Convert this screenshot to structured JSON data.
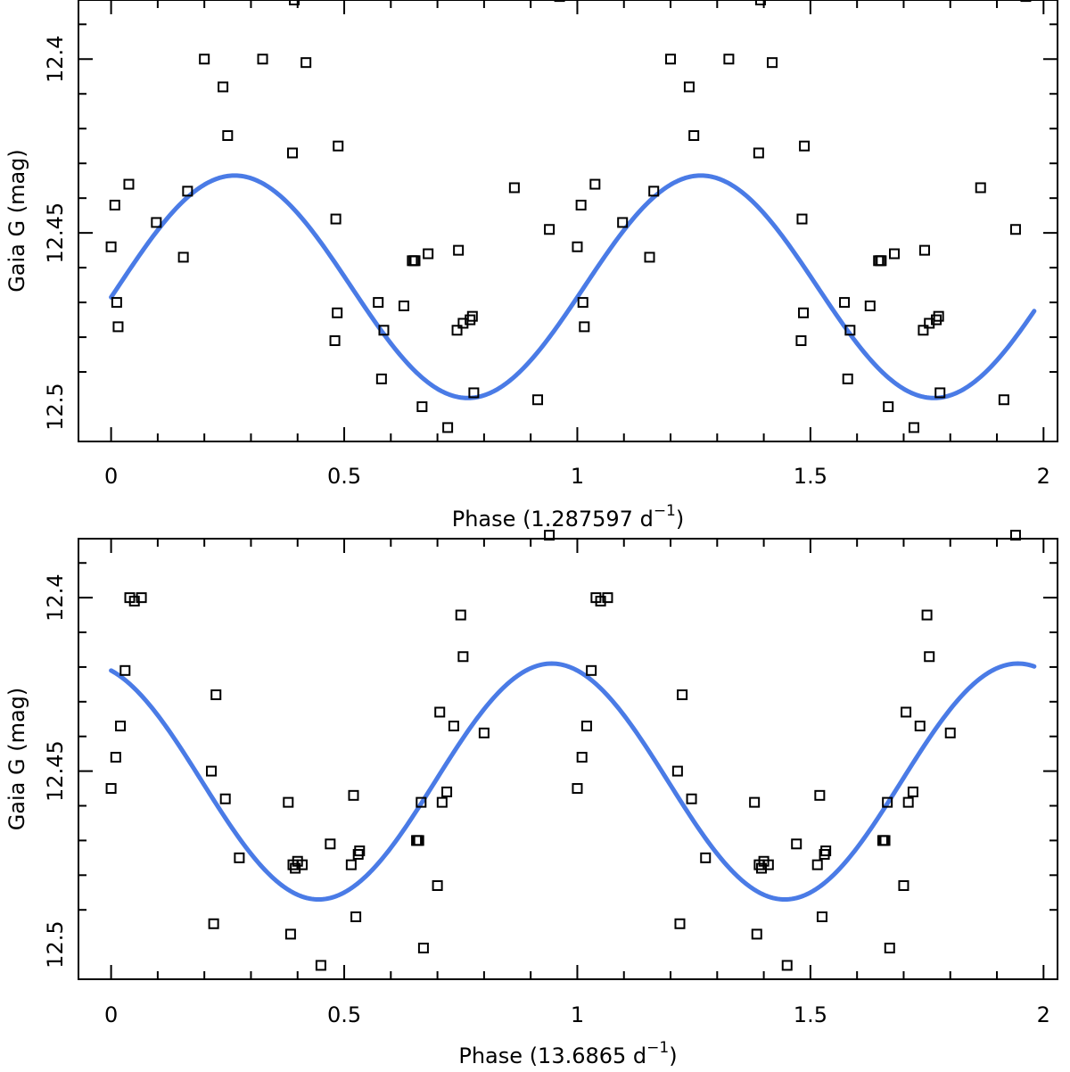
{
  "colors": {
    "fit": "#4a7be6",
    "points": "#000000"
  },
  "chart_data": [
    {
      "type": "scatter",
      "xlabel": "Phase",
      "freq_text": "(1.287597 d",
      "freq_sup": "−1",
      "freq_close": ")",
      "ylabel": "Gaia G (mag)",
      "xlim": [
        -0.07,
        2.03
      ],
      "ylim": [
        12.51,
        12.383
      ],
      "xticks": [
        0,
        0.5,
        1,
        1.5,
        2
      ],
      "xticklabels": [
        "0",
        "0.5",
        "1",
        "1.5",
        "2"
      ],
      "yticks": [
        12.4,
        12.45,
        12.5
      ],
      "yticklabels": [
        "12.4",
        "12.45",
        "12.5"
      ],
      "fit": {
        "mean": 12.4655,
        "amplitude": 0.032,
        "phase_of_max": 0.265
      },
      "phase_base": [
        0.0,
        0.008,
        0.012,
        0.015,
        0.038,
        0.097,
        0.155,
        0.164,
        0.2,
        0.24,
        0.25,
        0.325,
        0.389,
        0.393,
        0.418,
        0.48,
        0.482,
        0.485,
        0.487,
        0.573,
        0.58,
        0.585,
        0.628,
        0.646,
        0.65,
        0.652,
        0.667,
        0.68,
        0.722,
        0.742,
        0.745,
        0.755,
        0.77,
        0.775,
        0.778,
        0.865,
        0.915,
        0.94,
        0.962
      ],
      "mag_base": [
        12.454,
        12.442,
        12.47,
        12.477,
        12.436,
        12.447,
        12.457,
        12.438,
        12.4,
        12.408,
        12.422,
        12.4,
        12.427,
        12.383,
        12.401,
        12.481,
        12.446,
        12.473,
        12.425,
        12.47,
        12.492,
        12.478,
        12.471,
        12.458,
        12.458,
        12.458,
        12.5,
        12.456,
        12.506,
        12.478,
        12.455,
        12.476,
        12.475,
        12.474,
        12.496,
        12.437,
        12.498,
        12.449,
        12.382
      ]
    },
    {
      "type": "scatter",
      "xlabel": "Phase",
      "freq_text": "(13.6865 d",
      "freq_sup": "−1",
      "freq_close": ")",
      "ylabel": "Gaia G (mag)",
      "xlim": [
        -0.07,
        2.03
      ],
      "ylim": [
        12.51,
        12.383
      ],
      "xticks": [
        0,
        0.5,
        1,
        1.5,
        2
      ],
      "xticklabels": [
        "0",
        "0.5",
        "1",
        "1.5",
        "2"
      ],
      "yticks": [
        12.4,
        12.45,
        12.5
      ],
      "yticklabels": [
        "12.4",
        "12.45",
        "12.5"
      ],
      "fit": {
        "mean": 12.453,
        "amplitude": 0.034,
        "phase_of_max": 0.945
      },
      "phase_base": [
        0.0,
        0.01,
        0.02,
        0.03,
        0.04,
        0.05,
        0.065,
        0.215,
        0.22,
        0.225,
        0.245,
        0.275,
        0.38,
        0.385,
        0.39,
        0.395,
        0.4,
        0.41,
        0.45,
        0.47,
        0.515,
        0.52,
        0.525,
        0.53,
        0.533,
        0.655,
        0.657,
        0.66,
        0.665,
        0.67,
        0.7,
        0.705,
        0.71,
        0.72,
        0.735,
        0.75,
        0.755,
        0.8,
        0.94
      ],
      "mag_base": [
        12.455,
        12.446,
        12.437,
        12.421,
        12.4,
        12.401,
        12.4,
        12.45,
        12.494,
        12.428,
        12.458,
        12.475,
        12.459,
        12.497,
        12.477,
        12.478,
        12.476,
        12.477,
        12.506,
        12.471,
        12.477,
        12.457,
        12.492,
        12.474,
        12.473,
        12.47,
        12.47,
        12.47,
        12.459,
        12.501,
        12.483,
        12.433,
        12.459,
        12.456,
        12.437,
        12.405,
        12.417,
        12.439,
        12.382
      ]
    }
  ]
}
